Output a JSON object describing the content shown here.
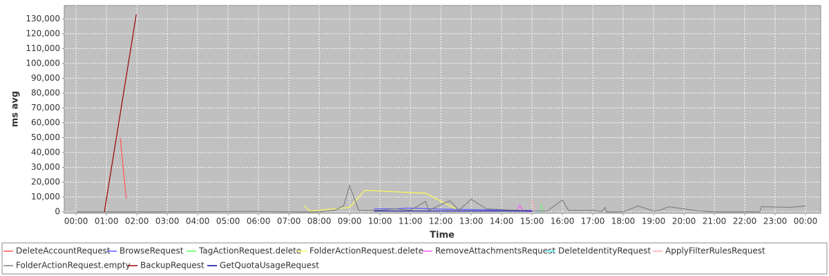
{
  "chart_data": {
    "type": "line",
    "x_label": "Time",
    "y_label": "ms avg",
    "xlim": [
      -0.39,
      24.5
    ],
    "ylim": [
      0,
      139000
    ],
    "xticks": [
      {
        "value": 0,
        "label": "00:00"
      },
      {
        "value": 1,
        "label": "01:00"
      },
      {
        "value": 2,
        "label": "02:00"
      },
      {
        "value": 3,
        "label": "03:00"
      },
      {
        "value": 4,
        "label": "04:00"
      },
      {
        "value": 5,
        "label": "05:00"
      },
      {
        "value": 6,
        "label": "06:00"
      },
      {
        "value": 7,
        "label": "07:00"
      },
      {
        "value": 8,
        "label": "08:00"
      },
      {
        "value": 9,
        "label": "09:00"
      },
      {
        "value": 10,
        "label": "10:00"
      },
      {
        "value": 11,
        "label": "11:00"
      },
      {
        "value": 12,
        "label": "12:00"
      },
      {
        "value": 13,
        "label": "13:00"
      },
      {
        "value": 14,
        "label": "14:00"
      },
      {
        "value": 15,
        "label": "15:00"
      },
      {
        "value": 16,
        "label": "16:00"
      },
      {
        "value": 17,
        "label": "17:00"
      },
      {
        "value": 18,
        "label": "18:00"
      },
      {
        "value": 19,
        "label": "19:00"
      },
      {
        "value": 20,
        "label": "20:00"
      },
      {
        "value": 21,
        "label": "21:00"
      },
      {
        "value": 22,
        "label": "22:00"
      },
      {
        "value": 23,
        "label": "23:00"
      },
      {
        "value": 24,
        "label": "00:00"
      }
    ],
    "yticks": [
      0,
      {
        "value": 10000,
        "label": "10,000"
      },
      {
        "value": 20000,
        "label": "20,000"
      },
      {
        "value": 30000,
        "label": "30,000"
      },
      {
        "value": 40000,
        "label": "40,000"
      },
      {
        "value": 50000,
        "label": "50,000"
      },
      {
        "value": 60000,
        "label": "60,000"
      },
      {
        "value": 70000,
        "label": "70,000"
      },
      {
        "value": 80000,
        "label": "80,000"
      },
      {
        "value": 90000,
        "label": "90,000"
      },
      {
        "value": 100000,
        "label": "100,000"
      },
      {
        "value": 110000,
        "label": "110,000"
      },
      {
        "value": 120000,
        "label": "120,000"
      },
      {
        "value": 130000,
        "label": "130,000"
      }
    ],
    "grid": true,
    "legend": "bottom",
    "series": [
      {
        "name": "DeleteAccountRequest",
        "color": "#ff5555",
        "x": [
          1.45,
          1.65
        ],
        "values": [
          50000,
          9000
        ]
      },
      {
        "name": "BrowseRequest",
        "color": "#5555ff",
        "x": [
          9.8,
          10.5,
          11,
          12,
          13,
          14,
          15
        ],
        "values": [
          2000,
          2000,
          2500,
          1800,
          1500,
          1200,
          800
        ]
      },
      {
        "name": "TagActionRequest.delete",
        "color": "#55ff55",
        "x": [
          15.3,
          15.35
        ],
        "values": [
          5000,
          0
        ]
      },
      {
        "name": "FolderActionRequest.delete",
        "color": "#ffff55",
        "x": [
          7.5,
          7.7,
          8.5,
          9,
          9.5,
          10.5,
          11.5,
          12.5
        ],
        "values": [
          4000,
          500,
          2000,
          3000,
          14500,
          13500,
          12500,
          2000
        ]
      },
      {
        "name": "RemoveAttachmentsRequest",
        "color": "#ff55ff",
        "x": [
          14.5,
          14.6,
          14.7,
          15
        ],
        "values": [
          1000,
          4500,
          500,
          200
        ]
      },
      {
        "name": "DeleteIdentityRequest",
        "color": "#55ffff",
        "x": [
          15.1,
          15.3
        ],
        "values": [
          200,
          300
        ]
      },
      {
        "name": "ApplyFilterRulesRequest",
        "color": "#ffaaaa",
        "x": [
          15,
          15.1
        ],
        "values": [
          8000,
          500
        ]
      },
      {
        "name": "FolderActionRequest.empty",
        "color": "#808080",
        "x": [
          0,
          2,
          6,
          7,
          8,
          8.5,
          8.8,
          9,
          9.3,
          10,
          10.5,
          11,
          11.5,
          11.6,
          12.3,
          12.6,
          13,
          13.5,
          14,
          14.5,
          15,
          15.5,
          16,
          16.2,
          17,
          17.3,
          17.4,
          17.45,
          18,
          18.5,
          19,
          19.2,
          19.5,
          20.5,
          21,
          22.5,
          22.55,
          23.5,
          24
        ],
        "values": [
          0,
          0,
          300,
          0,
          0,
          1000,
          4000,
          17500,
          1000,
          1000,
          2000,
          1000,
          7000,
          1000,
          7500,
          1000,
          8500,
          2000,
          1500,
          1000,
          500,
          500,
          8000,
          1000,
          1000,
          200,
          3000,
          0,
          0,
          4000,
          500,
          1000,
          3500,
          500,
          0,
          0,
          3500,
          3000,
          4000
        ]
      },
      {
        "name": "BackupRequest",
        "color": "#990000",
        "x": [
          0.93,
          1.98
        ],
        "values": [
          0,
          133000
        ]
      },
      {
        "name": "GetQuotaUsageRequest",
        "color": "#000099",
        "x": [
          9.8,
          15
        ],
        "values": [
          500,
          500
        ]
      }
    ]
  }
}
